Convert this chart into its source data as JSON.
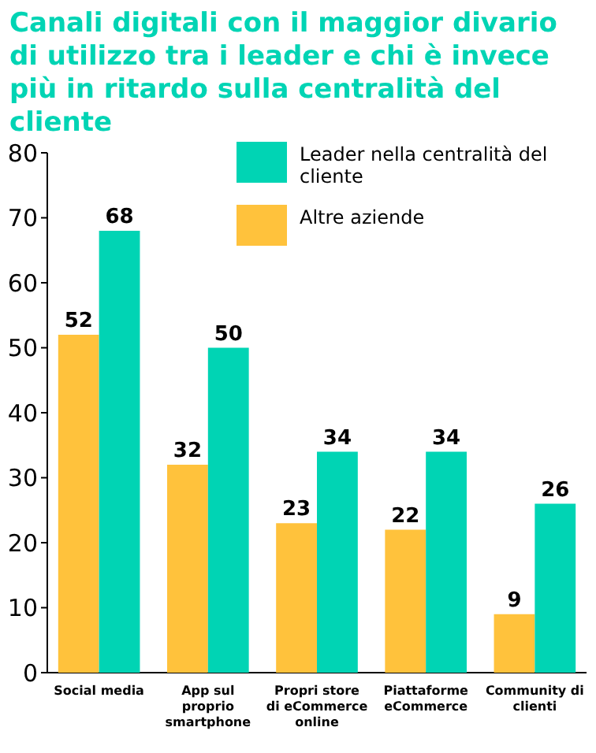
{
  "chart_data": {
    "type": "bar",
    "title": "Canali digitali con il maggior divario di utilizzo tra i leader e chi è invece più in ritardo sulla centralità del cliente",
    "categories": [
      "Social media",
      "App sul proprio smartphone",
      "Propri store di eCommerce online",
      "Piattaforme eCommerce",
      "Community di clienti"
    ],
    "series": [
      {
        "name": "Altre aziende",
        "color": "#ffc23c",
        "values": [
          52,
          32,
          23,
          22,
          9
        ]
      },
      {
        "name": "Leader nella centralità del cliente",
        "color": "#00d4b4",
        "values": [
          68,
          50,
          34,
          34,
          26
        ]
      }
    ],
    "ylim": [
      0,
      80
    ],
    "yticks": [
      0,
      10,
      20,
      30,
      40,
      50,
      60,
      70,
      80
    ],
    "grid": false,
    "legend": "top right",
    "data_labels": true
  }
}
